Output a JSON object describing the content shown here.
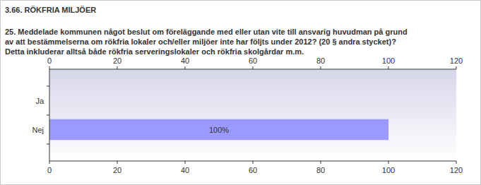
{
  "chart_data": {
    "type": "bar",
    "orientation": "horizontal",
    "title": "3.66. RÖKFRIA MILJÖER",
    "subtitle": [
      "25. Meddelade kommunen något beslut om föreläggande med eller utan vite till ansvarig huvudman på grund",
      "av att bestämmelserna om rökfria lokaler och/eller miljöer inte har följts under 2012? (20 § andra stycket)?",
      "Detta inkluderar alltså både rökfria serveringslokaler och rökfria skolgårdar m.m."
    ],
    "categories": [
      "Ja",
      "Nej"
    ],
    "values": [
      0,
      100
    ],
    "value_labels": [
      null,
      "100%"
    ],
    "data_labels": true,
    "color": "#9999ff",
    "xlim": [
      0,
      120
    ],
    "xticks": [
      0,
      20,
      40,
      60,
      80,
      100,
      120
    ],
    "grid": false
  }
}
